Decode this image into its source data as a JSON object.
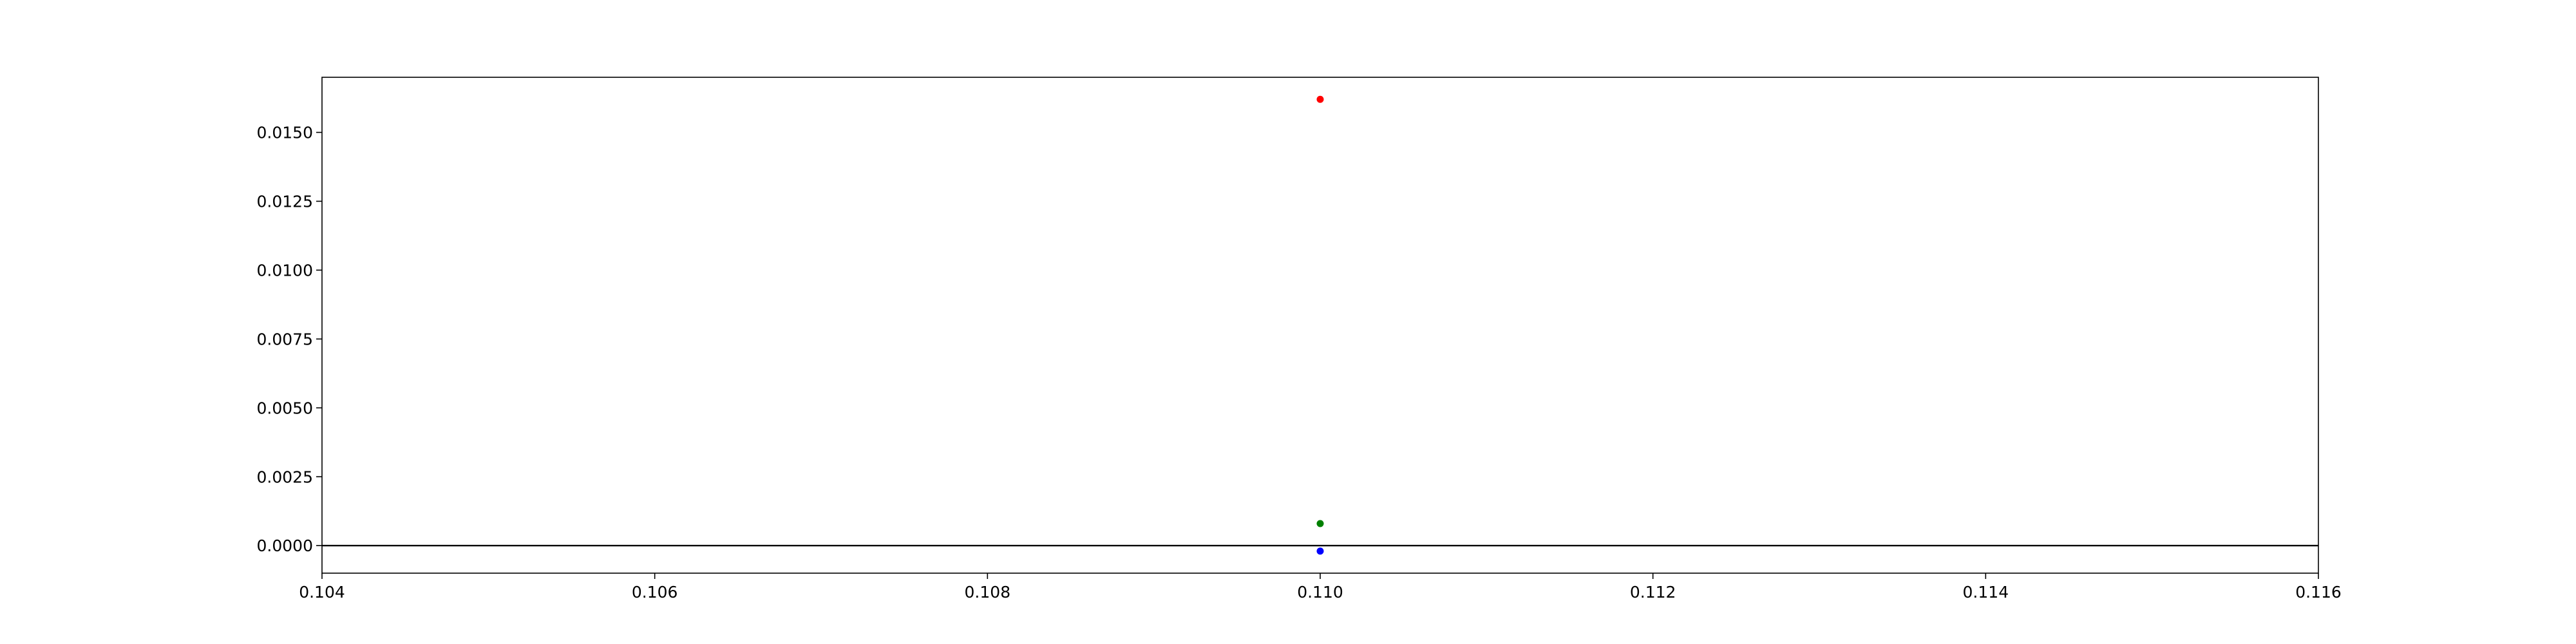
{
  "chart_data": {
    "type": "scatter",
    "title": "",
    "xlabel": "",
    "ylabel": "",
    "xlim": [
      0.104,
      0.116
    ],
    "ylim": [
      -0.001,
      0.017
    ],
    "grid": false,
    "legend": "none",
    "x_ticks": [
      {
        "value": 0.104,
        "label": "0.104"
      },
      {
        "value": 0.106,
        "label": "0.106"
      },
      {
        "value": 0.108,
        "label": "0.108"
      },
      {
        "value": 0.11,
        "label": "0.110"
      },
      {
        "value": 0.112,
        "label": "0.112"
      },
      {
        "value": 0.114,
        "label": "0.114"
      },
      {
        "value": 0.116,
        "label": "0.116"
      }
    ],
    "y_ticks": [
      {
        "value": 0.0,
        "label": "0.0000"
      },
      {
        "value": 0.0025,
        "label": "0.0025"
      },
      {
        "value": 0.005,
        "label": "0.0050"
      },
      {
        "value": 0.0075,
        "label": "0.0075"
      },
      {
        "value": 0.01,
        "label": "0.0100"
      },
      {
        "value": 0.0125,
        "label": "0.0125"
      },
      {
        "value": 0.015,
        "label": "0.0150"
      }
    ],
    "reference_line": {
      "y": 0.0,
      "color": "#000000"
    },
    "series": [
      {
        "name": "red",
        "color": "#ff0000",
        "points": [
          {
            "x": 0.11,
            "y": 0.0162
          }
        ]
      },
      {
        "name": "green",
        "color": "#008000",
        "points": [
          {
            "x": 0.11,
            "y": 0.0008
          }
        ]
      },
      {
        "name": "blue",
        "color": "#0000ff",
        "points": [
          {
            "x": 0.11,
            "y": -0.0002
          }
        ]
      }
    ]
  }
}
